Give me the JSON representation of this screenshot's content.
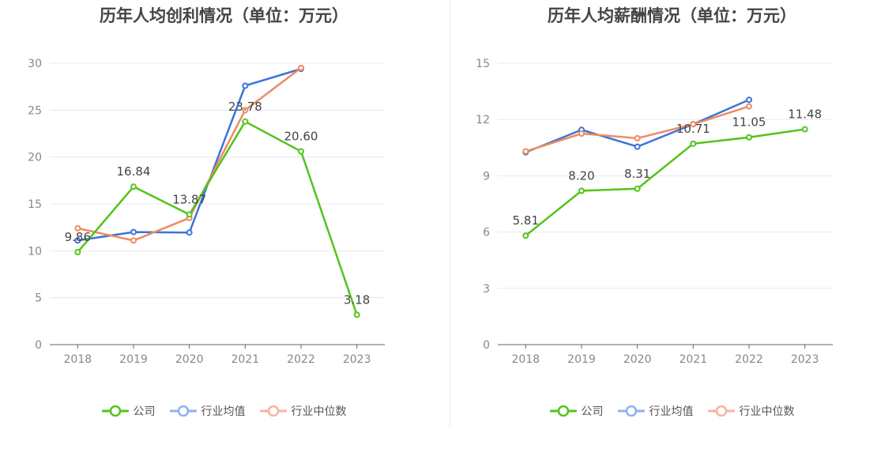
{
  "colors": {
    "company": "#52c41a",
    "industry_avg": "#3b73d9",
    "industry_median": "#ef8a62",
    "grid": "#e5e8ef",
    "axis": "#666666"
  },
  "legend": {
    "company": "公司",
    "industry_avg": "行业均值",
    "industry_median": "行业中位数"
  },
  "chart_data": [
    {
      "type": "line",
      "title": "历年人均创利情况（单位：万元）",
      "categories": [
        "2018",
        "2019",
        "2020",
        "2021",
        "2022",
        "2023"
      ],
      "ylim": [
        0,
        30
      ],
      "yticks": [
        0,
        5,
        10,
        15,
        20,
        25,
        30
      ],
      "grid": true,
      "legend_position": "bottom",
      "series": [
        {
          "key": "company",
          "name": "公司",
          "values": [
            9.86,
            16.84,
            13.87,
            23.78,
            20.6,
            3.18
          ],
          "labels": [
            "9.86",
            "16.84",
            "13.87",
            "23.78",
            "20.60",
            "3.18"
          ]
        },
        {
          "key": "industry_avg",
          "name": "行业均值",
          "values": [
            11.1,
            12.0,
            11.95,
            27.6,
            29.4,
            null
          ]
        },
        {
          "key": "industry_median",
          "name": "行业中位数",
          "values": [
            12.4,
            11.1,
            13.5,
            25.0,
            29.5,
            null
          ]
        }
      ]
    },
    {
      "type": "line",
      "title": "历年人均薪酬情况（单位：万元）",
      "categories": [
        "2018",
        "2019",
        "2020",
        "2021",
        "2022",
        "2023"
      ],
      "ylim": [
        0,
        15
      ],
      "yticks": [
        0,
        3,
        6,
        9,
        12,
        15
      ],
      "grid": true,
      "legend_position": "bottom",
      "series": [
        {
          "key": "company",
          "name": "公司",
          "values": [
            5.81,
            8.2,
            8.31,
            10.71,
            11.05,
            11.48
          ],
          "labels": [
            "5.81",
            "8.20",
            "8.31",
            "10.71",
            "11.05",
            "11.48"
          ]
        },
        {
          "key": "industry_avg",
          "name": "行业均值",
          "values": [
            10.25,
            11.45,
            10.55,
            11.75,
            13.05,
            null
          ]
        },
        {
          "key": "industry_median",
          "name": "行业中位数",
          "values": [
            10.3,
            11.25,
            11.0,
            11.75,
            12.7,
            null
          ]
        }
      ]
    }
  ]
}
